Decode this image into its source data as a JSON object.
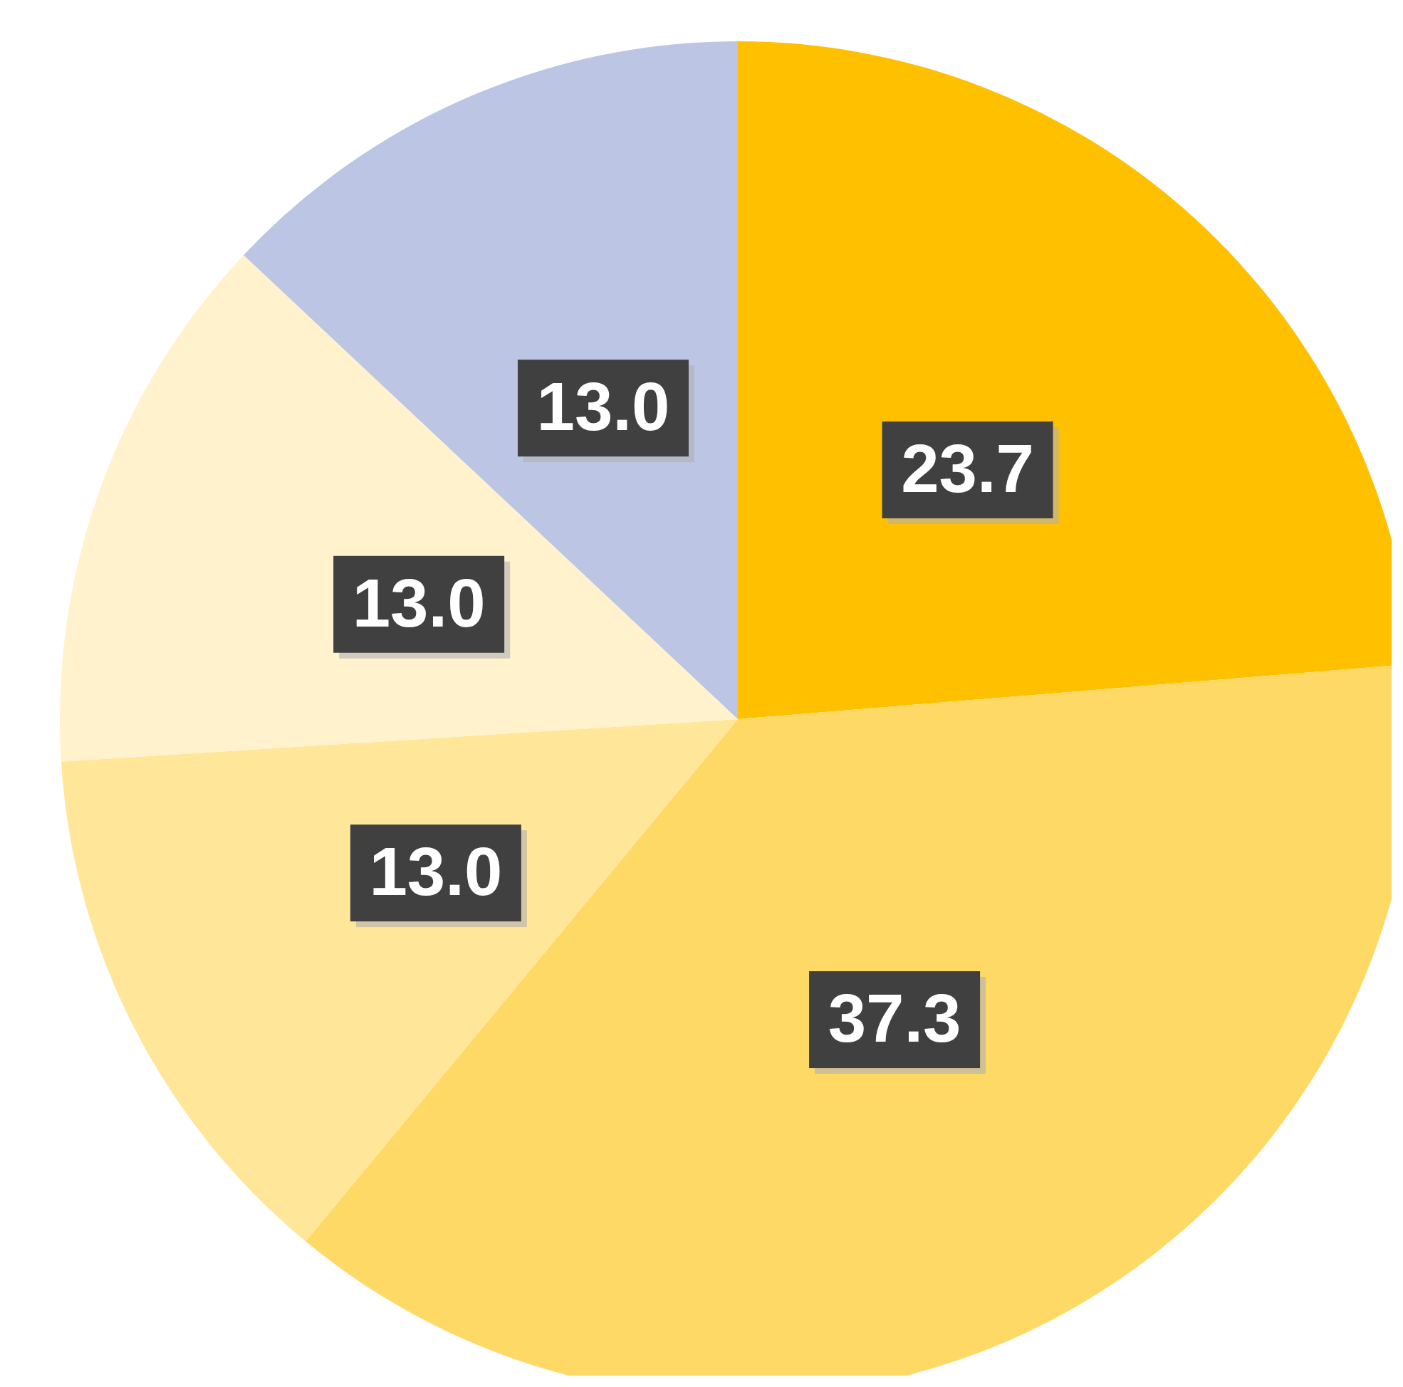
{
  "chart_data": {
    "type": "pie",
    "categories": [
      null,
      null,
      null,
      null,
      null
    ],
    "values": [
      23.7,
      37.3,
      13.0,
      13.0,
      13.0
    ],
    "value_labels": [
      "23.7",
      "37.3",
      "13.0",
      "13.0",
      "13.0"
    ],
    "colors": [
      "#ffc000",
      "#ffd966",
      "#ffe699",
      "#fff2cc",
      "#bcc5e4"
    ]
  }
}
